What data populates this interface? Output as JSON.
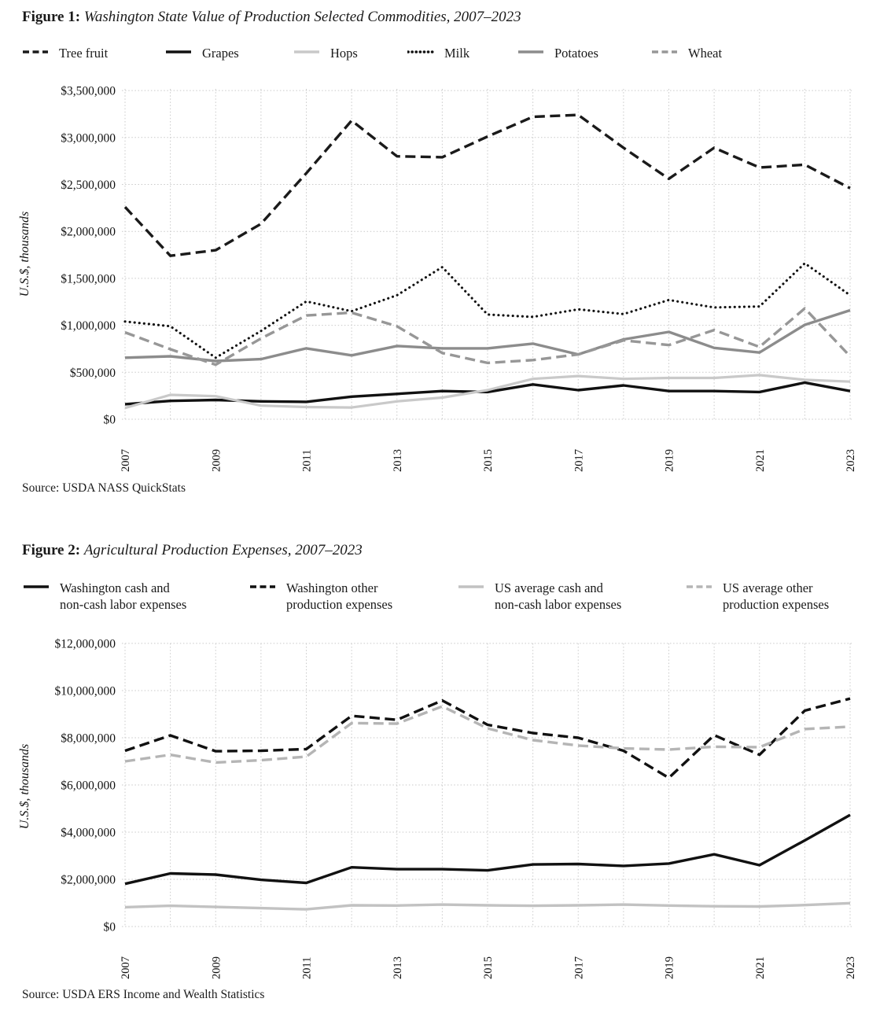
{
  "page": {
    "figure1": {
      "label": "Figure 1:",
      "title": "Washington State Value of Production Selected Commodities, 2007–2023",
      "source": "Source: USDA NASS QuickStats"
    },
    "figure2": {
      "label": "Figure 2:",
      "title": "Agricultural Production Expenses, 2007–2023",
      "source": "Source: USDA ERS Income and Wealth Statistics"
    }
  },
  "chart_data": [
    {
      "type": "line",
      "title": "Washington State Value of Production Selected Commodities, 2007–2023",
      "ylabel": "U.S.$, thousands",
      "xlabel": "",
      "grid": true,
      "legend_position": "top",
      "x": [
        2007,
        2008,
        2009,
        2010,
        2011,
        2012,
        2013,
        2014,
        2015,
        2016,
        2017,
        2018,
        2019,
        2020,
        2021,
        2022,
        2023
      ],
      "x_tick_labels": [
        "2007",
        "2009",
        "2011",
        "2013",
        "2015",
        "2017",
        "2019",
        "2021",
        "2023"
      ],
      "ylim": [
        0,
        3500000
      ],
      "yticks": [
        0,
        500000,
        1000000,
        1500000,
        2000000,
        2500000,
        3000000,
        3500000
      ],
      "ytick_labels": [
        "$0",
        "$500,000",
        "$1,000,000",
        "$1,500,000",
        "$2,000,000",
        "$2,500,000",
        "$3,000,000",
        "$3,500,000"
      ],
      "series": [
        {
          "name": "Tree fruit",
          "style": "dashed",
          "color": "#1a1a1a",
          "width": 3.4,
          "values": [
            2260000,
            1740000,
            1800000,
            2080000,
            2620000,
            3180000,
            2800000,
            2790000,
            3010000,
            3220000,
            3240000,
            2890000,
            2560000,
            2890000,
            2680000,
            2710000,
            2460000
          ]
        },
        {
          "name": "Grapes",
          "style": "solid",
          "color": "#111111",
          "width": 3.4,
          "values": [
            160000,
            195000,
            205000,
            190000,
            185000,
            240000,
            270000,
            300000,
            290000,
            370000,
            310000,
            360000,
            300000,
            300000,
            290000,
            390000,
            300000
          ]
        },
        {
          "name": "Hops",
          "style": "solid",
          "color": "#c9c9c9",
          "width": 3.2,
          "values": [
            120000,
            260000,
            245000,
            145000,
            130000,
            125000,
            190000,
            230000,
            310000,
            430000,
            460000,
            430000,
            440000,
            440000,
            470000,
            420000,
            400000
          ]
        },
        {
          "name": "Milk",
          "style": "dotted",
          "color": "#111111",
          "width": 3.1,
          "values": [
            1040000,
            990000,
            655000,
            940000,
            1255000,
            1150000,
            1320000,
            1620000,
            1115000,
            1090000,
            1170000,
            1120000,
            1270000,
            1190000,
            1200000,
            1660000,
            1320000
          ]
        },
        {
          "name": "Potatoes",
          "style": "solid",
          "color": "#8c8c8c",
          "width": 3.4,
          "values": [
            655000,
            670000,
            620000,
            640000,
            755000,
            680000,
            780000,
            755000,
            755000,
            805000,
            690000,
            850000,
            930000,
            760000,
            710000,
            1005000,
            1160000
          ]
        },
        {
          "name": "Wheat",
          "style": "dashed",
          "color": "#979797",
          "width": 3.4,
          "values": [
            925000,
            745000,
            580000,
            860000,
            1105000,
            1135000,
            990000,
            705000,
            600000,
            630000,
            690000,
            840000,
            790000,
            950000,
            770000,
            1180000,
            670000
          ]
        }
      ]
    },
    {
      "type": "line",
      "title": "Agricultural Production Expenses, 2007–2023",
      "ylabel": "U.S.$, thousands",
      "xlabel": "",
      "grid": true,
      "legend_position": "top",
      "x": [
        2007,
        2008,
        2009,
        2010,
        2011,
        2012,
        2013,
        2014,
        2015,
        2016,
        2017,
        2018,
        2019,
        2020,
        2021,
        2022,
        2023
      ],
      "x_tick_labels": [
        "2007",
        "2009",
        "2011",
        "2013",
        "2015",
        "2017",
        "2019",
        "2021",
        "2023"
      ],
      "ylim": [
        0,
        12000000
      ],
      "yticks": [
        0,
        2000000,
        4000000,
        6000000,
        8000000,
        10000000,
        12000000
      ],
      "ytick_labels": [
        "$0",
        "$2,000,000",
        "$4,000,000",
        "$6,000,000",
        "$8,000,000",
        "$10,000,000",
        "$12,000,000"
      ],
      "series": [
        {
          "name": "Washington cash and non-cash labor expenses",
          "name_lines": [
            "Washington cash and",
            "non-cash labor expenses"
          ],
          "style": "solid",
          "color": "#111111",
          "width": 3.4,
          "values": [
            1810000,
            2250000,
            2200000,
            1980000,
            1850000,
            2510000,
            2430000,
            2430000,
            2380000,
            2630000,
            2650000,
            2570000,
            2670000,
            3060000,
            2600000,
            3650000,
            4730000
          ]
        },
        {
          "name": "Washington other production expenses",
          "name_lines": [
            "Washington other",
            "production expenses"
          ],
          "style": "dashed",
          "color": "#111111",
          "width": 3.4,
          "values": [
            7450000,
            8100000,
            7430000,
            7450000,
            7520000,
            8930000,
            8760000,
            9580000,
            8550000,
            8200000,
            8000000,
            7450000,
            6300000,
            8110000,
            7280000,
            9150000,
            9660000
          ]
        },
        {
          "name": "US average cash and non-cash labor expenses",
          "name_lines": [
            "US average cash and",
            "non-cash labor expenses"
          ],
          "style": "solid",
          "color": "#c2c2c2",
          "width": 3.4,
          "values": [
            820000,
            880000,
            830000,
            780000,
            730000,
            900000,
            890000,
            930000,
            900000,
            880000,
            900000,
            930000,
            890000,
            860000,
            850000,
            910000,
            990000
          ]
        },
        {
          "name": "US average other production expenses",
          "name_lines": [
            "US average other",
            "production expenses"
          ],
          "style": "dashed",
          "color": "#b5b5b5",
          "width": 3.4,
          "values": [
            7000000,
            7280000,
            6950000,
            7050000,
            7200000,
            8620000,
            8600000,
            9330000,
            8400000,
            7900000,
            7670000,
            7550000,
            7500000,
            7620000,
            7600000,
            8370000,
            8470000
          ]
        }
      ]
    }
  ]
}
